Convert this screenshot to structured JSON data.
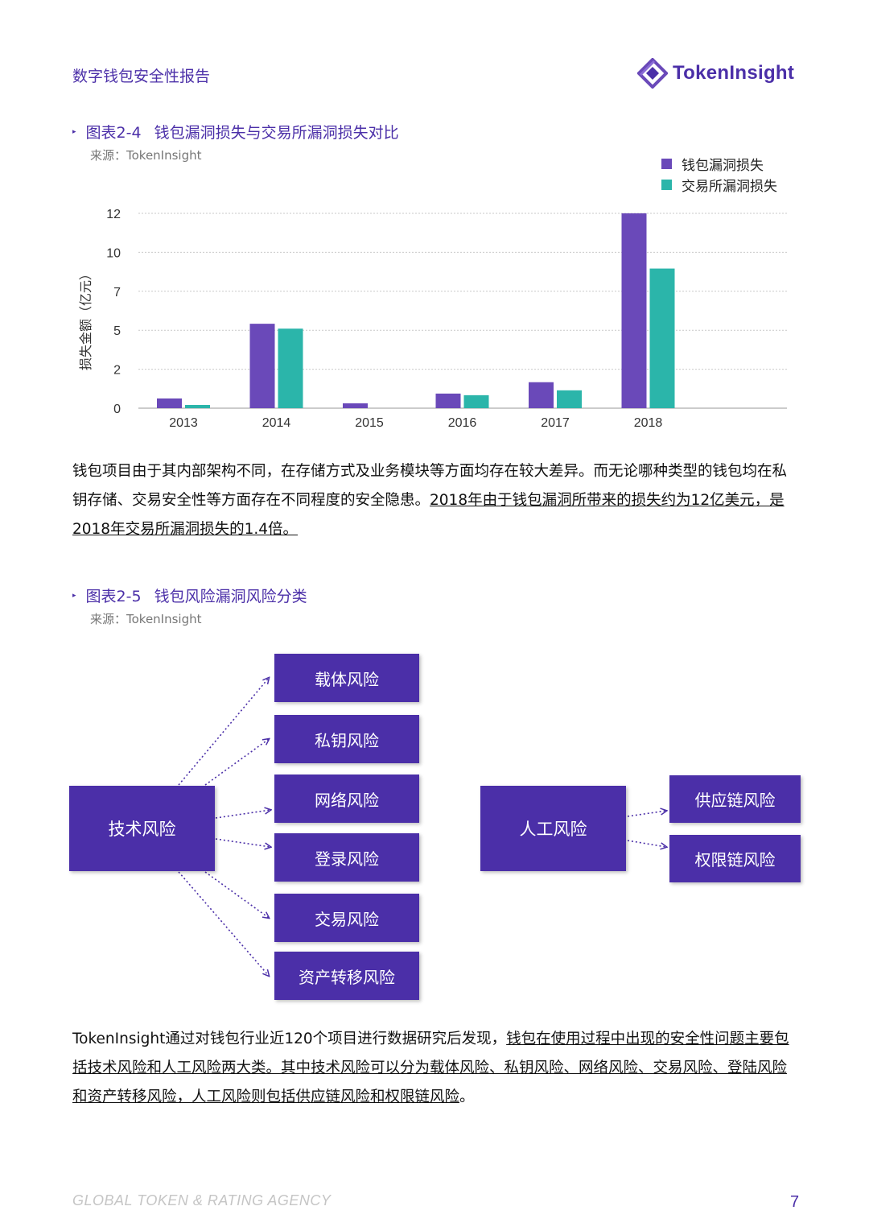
{
  "header": {
    "title": "数字钱包安全性报告",
    "logo_text": "TokenInsight"
  },
  "figure1": {
    "number": "图表2-4",
    "title": "钱包漏洞损失与交易所漏洞损失对比",
    "source": "来源：TokenInsight"
  },
  "figure2": {
    "number": "图表2-5",
    "title": "钱包风险漏洞风险分类",
    "source": "来源：TokenInsight"
  },
  "chart_data": {
    "type": "bar",
    "categories": [
      "2013",
      "2014",
      "2015",
      "2016",
      "2017",
      "2018"
    ],
    "series": [
      {
        "name": "钱包漏洞损失",
        "values": [
          0.6,
          5.2,
          0.3,
          0.9,
          1.6,
          12.0
        ],
        "color": "#6a49b9"
      },
      {
        "name": "交易所漏洞损失",
        "values": [
          0.2,
          4.9,
          0.0,
          0.8,
          1.1,
          8.6
        ],
        "color": "#2bb5aa"
      }
    ],
    "ylabel": "损失金额（亿元）",
    "yticks": [
      {
        "value": 0,
        "label": "0"
      },
      {
        "value": 2.4,
        "label": "2"
      },
      {
        "value": 4.8,
        "label": "5"
      },
      {
        "value": 7.2,
        "label": "7"
      },
      {
        "value": 9.6,
        "label": "10"
      },
      {
        "value": 12,
        "label": "12"
      }
    ],
    "ylim": [
      0,
      12
    ],
    "grid": true,
    "legend_position": "top-right"
  },
  "paragraph1": {
    "plain": "钱包项目由于其内部架构不同，在存储方式及业务模块等方面均存在较大差异。而无论哪种类型的钱包均在私钥存储、交易安全性等方面存在不同程度的安全隐患。",
    "underlined": "2018年由于钱包漏洞所带来的损失约为12亿美元，是2018年交易所漏洞损失的1.4倍。"
  },
  "diagram": {
    "tech_root": "技术风险",
    "tech_children": [
      "载体风险",
      "私钥风险",
      "网络风险",
      "登录风险",
      "交易风险",
      "资产转移风险"
    ],
    "human_root": "人工风险",
    "human_children": [
      "供应链风险",
      "权限链风险"
    ],
    "box_color": "#4b2fa8"
  },
  "paragraph2": {
    "plain_start": "TokenInsight通过对钱包行业近120个项目进行数据研究后发现，",
    "underlined": "钱包在使用过程中出现的安全性问题主要包括技术风险和人工风险两大类。其中技术风险可以分为载体风险、私钥风险、网络风险、交易风险、登陆风险和资产转移风险，人工风险则包括供应链风险和权限链风险",
    "plain_end": "。"
  },
  "footer": {
    "left_text": "GLOBAL TOKEN & RATING AGENCY",
    "page_number": "7"
  }
}
